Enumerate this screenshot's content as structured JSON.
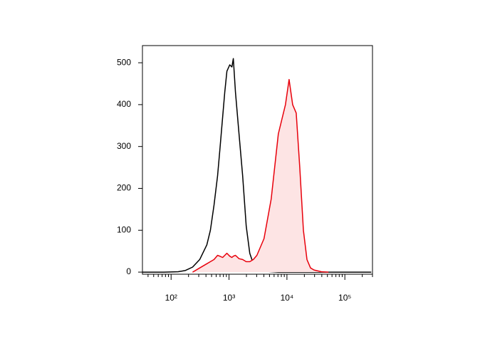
{
  "chart_data": {
    "type": "line",
    "xscale": "log",
    "x": [
      32,
      75,
      133,
      177,
      235,
      312,
      414,
      477,
      551,
      634,
      692,
      775,
      844,
      919,
      1029,
      1120,
      1186,
      1291,
      1489,
      1717,
      1978,
      2280,
      2630,
      3030,
      4025,
      5350,
      7110,
      9440,
      10890,
      12560,
      14460,
      16680,
      19230,
      22180,
      25540,
      29440,
      39170,
      52000,
      91900,
      286000
    ],
    "series": [
      {
        "color": "#000000",
        "values": [
          0,
          0,
          1,
          4,
          12,
          30,
          65,
          100,
          160,
          230,
          290,
          370,
          430,
          480,
          495,
          490,
          510,
          430,
          330,
          230,
          110,
          45,
          20,
          8,
          2,
          1,
          0,
          0,
          0,
          0,
          0,
          0,
          0,
          0,
          0,
          0,
          0,
          0,
          0,
          0
        ]
      },
      {
        "color": "#e8000b",
        "fill": "#fde4e4",
        "values": [
          null,
          null,
          null,
          null,
          0,
          10,
          20,
          25,
          30,
          40,
          38,
          35,
          40,
          45,
          38,
          35,
          38,
          40,
          32,
          30,
          25,
          25,
          30,
          40,
          80,
          175,
          330,
          400,
          460,
          400,
          380,
          250,
          100,
          30,
          10,
          5,
          1,
          0,
          null,
          null
        ]
      }
    ],
    "xlim": [
      32,
      300000
    ],
    "ylim": [
      -5,
      541
    ],
    "xticks": [
      {
        "value": 100,
        "label": "10²"
      },
      {
        "value": 1000,
        "label": "10³"
      },
      {
        "value": 10000,
        "label": "10⁴"
      },
      {
        "value": 100000,
        "label": "10⁵"
      }
    ],
    "yticks": [
      0,
      100,
      200,
      300,
      400,
      500
    ]
  }
}
